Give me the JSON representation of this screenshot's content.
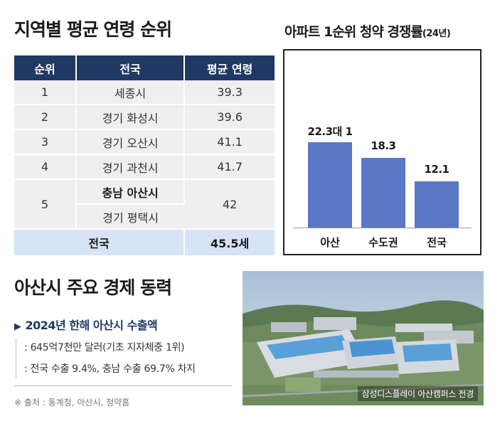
{
  "left_title": "지역별 평균 연령 순위",
  "table": {
    "headers": [
      "순위",
      "전국",
      "평균 연령"
    ],
    "rows": [
      {
        "rank": "1",
        "region": "세종시",
        "age": "39.3"
      },
      {
        "rank": "2",
        "region": "경기 화성시",
        "age": "39.6"
      },
      {
        "rank": "3",
        "region": "경기 오산시",
        "age": "41.1"
      },
      {
        "rank": "4",
        "region": "경기 과천시",
        "age": "41.7"
      },
      {
        "rank": "5",
        "region": "충남 아산시",
        "region2": "경기 평택시",
        "age": "42"
      }
    ],
    "total": {
      "label": "전국",
      "age": "45.5세"
    }
  },
  "chart_title": "아파트 1순위 청약 경쟁률",
  "chart_title_sub": "(24년)",
  "chart_data": {
    "type": "bar",
    "categories": [
      "아산",
      "수도권",
      "전국"
    ],
    "values": [
      22.3,
      18.3,
      12.1
    ],
    "data_labels": [
      "22.3대 1",
      "18.3",
      "12.1"
    ],
    "ylim": [
      0,
      25
    ],
    "bar_color": "#5a78c5",
    "grid": false
  },
  "section2_title": "아산시 주요 경제 동력",
  "export": {
    "title": "2024년 한해 아산시 수출액",
    "lines": [
      ": 645억7천만 달러(기초 지자체중 1위)",
      ": 전국 수출 9.4%, 충남 수출 69.7% 차지"
    ]
  },
  "source": "※ 출처 : 통계청, 아산시, 청약홈",
  "photo_caption": "삼성디스플레이 아산캠퍼스 전경",
  "colors": {
    "navy": "#203864",
    "bar": "#5a78c5",
    "total_row": "#d6e4f5",
    "row": "#efefef"
  }
}
